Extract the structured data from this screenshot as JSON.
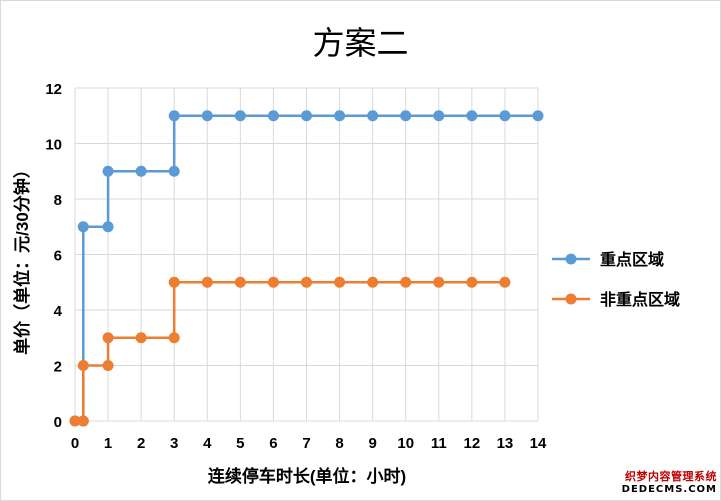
{
  "chart_data": {
    "type": "line",
    "title": "方案二",
    "xlabel": "连续停车时长(单位：小时)",
    "ylabel": "单价（单位：元/30分钟）",
    "xlim": [
      0,
      14
    ],
    "ylim": [
      0,
      12
    ],
    "x_ticks": [
      0,
      1,
      2,
      3,
      4,
      5,
      6,
      7,
      8,
      9,
      10,
      11,
      12,
      13,
      14
    ],
    "y_ticks": [
      0,
      2,
      4,
      6,
      8,
      10,
      12
    ],
    "grid": true,
    "legend_position": "right",
    "series": [
      {
        "name": "重点区域",
        "color": "#5b9bd5",
        "x": [
          0,
          0.25,
          0.25,
          1,
          1,
          2,
          3,
          3,
          4,
          5,
          6,
          7,
          8,
          9,
          10,
          11,
          12,
          13,
          14
        ],
        "y": [
          0,
          0,
          7,
          7,
          9,
          9,
          9,
          11,
          11,
          11,
          11,
          11,
          11,
          11,
          11,
          11,
          11,
          11,
          11
        ]
      },
      {
        "name": "非重点区域",
        "color": "#ed7d31",
        "x": [
          0,
          0.25,
          0.25,
          1,
          1,
          2,
          3,
          3,
          4,
          5,
          6,
          7,
          8,
          9,
          10,
          11,
          12,
          13
        ],
        "y": [
          0,
          0,
          2,
          2,
          3,
          3,
          3,
          5,
          5,
          5,
          5,
          5,
          5,
          5,
          5,
          5,
          5,
          5
        ]
      }
    ]
  },
  "watermark": {
    "line1": "织梦内容管理系统",
    "line2": "DEDECMS.COM"
  }
}
